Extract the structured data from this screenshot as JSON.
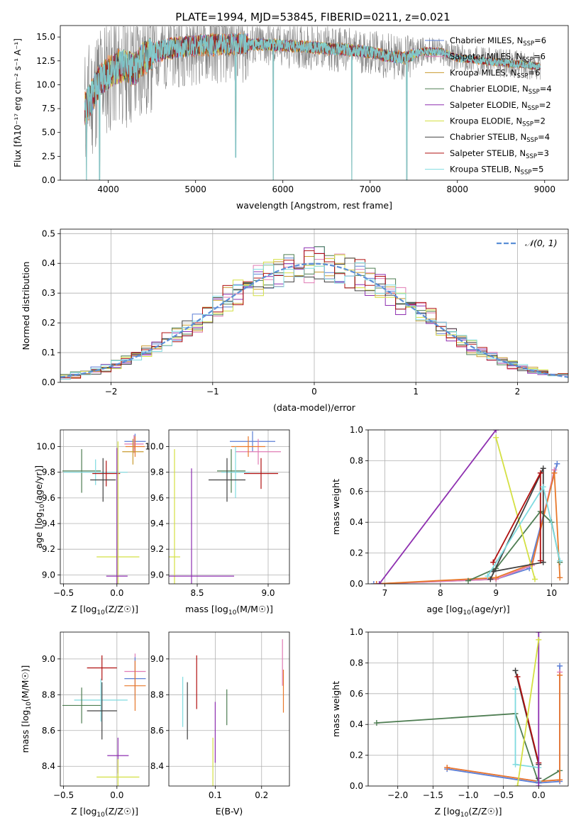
{
  "figure": {
    "title": "PLATE=1994, MJD=53845, FIBERID=0211, z=0.021"
  },
  "colors": {
    "Chabrier MILES": "#5b7fd6",
    "Salpeter MILES": "#e07bb5",
    "Kroupa MILES": "#c99a2e",
    "Chabrier ELODIE": "#4e7d52",
    "Salpeter ELODIE": "#8e2fb0",
    "Kroupa ELODIE": "#d4e043",
    "Chabrier STELIB": "#404040",
    "Salpeter STELIB": "#b01010",
    "Kroupa STELIB": "#7fdbe0",
    "orange": "#e8782a",
    "gray": "#808080",
    "normal": "#5b8fd6"
  },
  "chart_data": [
    {
      "id": "spectrum",
      "type": "line",
      "xlabel": "wavelength [Angstrom, rest frame]",
      "ylabel": "Flux [fλ10⁻¹⁷ erg cm⁻² s⁻¹ A⁻¹]",
      "xlim": [
        3450,
        9270
      ],
      "ylim": [
        0,
        16.2
      ],
      "xticks": [
        4000,
        5000,
        6000,
        7000,
        8000,
        9000
      ],
      "yticks": [
        0.0,
        2.5,
        5.0,
        7.5,
        10.0,
        12.5,
        15.0
      ],
      "legend_position": "top-right",
      "continuum": {
        "x": [
          3730,
          3800,
          3900,
          4000,
          4100,
          4200,
          4300,
          4400,
          4500,
          4700,
          4900,
          5100,
          5300,
          5500,
          5800,
          6000,
          6200,
          6500,
          6800,
          7000,
          7200,
          7400,
          7600,
          7800,
          8000,
          8200,
          8400,
          8600,
          8800,
          8950
        ],
        "y": [
          7.5,
          8.5,
          10.5,
          11.2,
          11.8,
          12.0,
          11.5,
          12.8,
          13.3,
          13.8,
          14.0,
          14.2,
          14.2,
          14.3,
          14.2,
          14.1,
          14.0,
          13.8,
          13.6,
          13.4,
          13.0,
          12.8,
          13.5,
          13.5,
          12.8,
          12.6,
          12.4,
          12.2,
          12.1,
          11.9
        ]
      },
      "series": [
        {
          "name": "Chabrier MILES, N_SSP=6",
          "label_prefix": "Chabrier MILES, N",
          "label_sub": "SSP",
          "label_suffix": "=6"
        },
        {
          "name": "Salpeter MILES, N_SSP=6",
          "label_prefix": "Salpeter MILES, N",
          "label_sub": "SSP",
          "label_suffix": "=6"
        },
        {
          "name": "Kroupa MILES, N_SSP=6",
          "label_prefix": "Kroupa MILES, N",
          "label_sub": "SSP",
          "label_suffix": "=6"
        },
        {
          "name": "Chabrier ELODIE, N_SSP=4",
          "label_prefix": "Chabrier ELODIE, N",
          "label_sub": "SSP",
          "label_suffix": "=4"
        },
        {
          "name": "Salpeter ELODIE, N_SSP=2",
          "label_prefix": "Salpeter ELODIE, N",
          "label_sub": "SSP",
          "label_suffix": "=2"
        },
        {
          "name": "Kroupa ELODIE, N_SSP=2",
          "label_prefix": "Kroupa ELODIE, N",
          "label_sub": "SSP",
          "label_suffix": "=2"
        },
        {
          "name": "Chabrier STELIB, N_SSP=4",
          "label_prefix": "Chabrier STELIB, N",
          "label_sub": "SSP",
          "label_suffix": "=4"
        },
        {
          "name": "Salpeter STELIB, N_SSP=3",
          "label_prefix": "Salpeter STELIB, N",
          "label_sub": "SSP",
          "label_suffix": "=3"
        },
        {
          "name": "Kroupa STELIB, N_SSP=5",
          "label_prefix": "Kroupa STELIB, N",
          "label_sub": "SSP",
          "label_suffix": "=5"
        }
      ],
      "dropouts": [
        {
          "x": 3750,
          "y": 0.0
        },
        {
          "x": 3900,
          "y": 0.0
        },
        {
          "x": 5460,
          "y": 2.4
        },
        {
          "x": 5890,
          "y": 0.0
        },
        {
          "x": 6790,
          "y": 0.0
        },
        {
          "x": 7420,
          "y": 0.0
        }
      ]
    },
    {
      "id": "residuals",
      "type": "histogram",
      "xlabel": "(data-model)/error",
      "ylabel": "Normed distribution",
      "xlim": [
        -2.5,
        2.5
      ],
      "ylim": [
        0,
        0.515
      ],
      "xticks": [
        -2,
        -1,
        0,
        1,
        2
      ],
      "yticks": [
        0.0,
        0.1,
        0.2,
        0.3,
        0.4,
        0.5
      ],
      "grid": true,
      "legend_position": "top-right",
      "normal_label": "𝒩(0, 1)",
      "bin_width": 0.1
    },
    {
      "id": "age-vs-Z",
      "type": "errorbar",
      "xlabel_main": "Z [log",
      "xlabel_sub": "10",
      "xlabel_rest": "(Z/Z☉)]",
      "ylabel_main": "age  [log",
      "ylabel_sub": "10",
      "ylabel_rest": "(age/yr)]",
      "xlim": [
        -0.53,
        0.3
      ],
      "ylim": [
        8.93,
        10.13
      ],
      "xticks": [
        -0.5,
        0.0
      ],
      "yticks": [
        9.0,
        9.2,
        9.4,
        9.6,
        9.8,
        10.0
      ],
      "grid": true,
      "points": [
        {
          "series": "Chabrier MILES",
          "x": 0.17,
          "y": 10.04,
          "xerr": 0.1,
          "yerr": 0.06
        },
        {
          "series": "Salpeter MILES",
          "x": 0.16,
          "y": 10.02,
          "xerr": 0.09,
          "yerr": 0.07
        },
        {
          "series": "orange",
          "x": 0.17,
          "y": 10.0,
          "xerr": 0.09,
          "yerr": 0.08
        },
        {
          "series": "Kroupa MILES",
          "x": 0.15,
          "y": 9.96,
          "xerr": 0.1,
          "yerr": 0.1
        },
        {
          "series": "Chabrier ELODIE",
          "x": -0.33,
          "y": 9.81,
          "xerr": 0.18,
          "yerr": 0.17
        },
        {
          "series": "Kroupa STELIB",
          "x": -0.2,
          "y": 9.8,
          "xerr": 0.3,
          "yerr": 0.1
        },
        {
          "series": "Salpeter STELIB",
          "x": -0.1,
          "y": 9.79,
          "xerr": 0.13,
          "yerr": 0.1
        },
        {
          "series": "Chabrier STELIB",
          "x": -0.13,
          "y": 9.74,
          "xerr": 0.12,
          "yerr": 0.17
        },
        {
          "series": "Kroupa ELODIE",
          "x": 0.01,
          "y": 9.14,
          "xerr": 0.2,
          "yerr": 0.9
        },
        {
          "series": "Salpeter ELODIE",
          "x": 0.0,
          "y": 8.99,
          "xerr": 0.1,
          "yerr": 1.0
        }
      ]
    },
    {
      "id": "age-vs-mass",
      "type": "errorbar",
      "xlabel_main": "mass [log",
      "xlabel_sub": "10",
      "xlabel_rest": "(M/M☉)]",
      "xlim": [
        8.3,
        9.15
      ],
      "ylim": [
        8.93,
        10.13
      ],
      "xticks": [
        8.5,
        9.0
      ],
      "yticks": [
        9.0,
        9.2,
        9.4,
        9.6,
        9.8,
        10.0
      ],
      "grid": true,
      "points": [
        {
          "series": "Chabrier MILES",
          "x": 8.89,
          "y": 10.04,
          "xerr": 0.16,
          "yerr": 0.08
        },
        {
          "series": "Salpeter MILES",
          "x": 8.93,
          "y": 9.96,
          "xerr": 0.16,
          "yerr": 0.1
        },
        {
          "series": "orange",
          "x": 8.86,
          "y": 10.0,
          "xerr": 0.12,
          "yerr": 0.08
        },
        {
          "series": "Chabrier ELODIE",
          "x": 8.74,
          "y": 9.81,
          "xerr": 0.1,
          "yerr": 0.17
        },
        {
          "series": "Kroupa STELIB",
          "x": 8.77,
          "y": 9.8,
          "xerr": 0.1,
          "yerr": 0.2
        },
        {
          "series": "Salpeter STELIB",
          "x": 8.95,
          "y": 9.79,
          "xerr": 0.12,
          "yerr": 0.12
        },
        {
          "series": "Chabrier STELIB",
          "x": 8.71,
          "y": 9.74,
          "xerr": 0.13,
          "yerr": 0.17
        },
        {
          "series": "Kroupa ELODIE",
          "x": 8.34,
          "y": 9.14,
          "xerr": 0.04,
          "yerr": 0.84
        },
        {
          "series": "Salpeter ELODIE",
          "x": 8.46,
          "y": 8.99,
          "xerr": 0.3,
          "yerr": 0.84
        }
      ]
    },
    {
      "id": "weight-vs-age",
      "type": "line",
      "xlabel_main": "age  [log",
      "xlabel_sub": "10",
      "xlabel_rest": "(age/yr)]",
      "ylabel": "mass weight",
      "xlim": [
        6.7,
        10.3
      ],
      "ylim": [
        0.0,
        1.0
      ],
      "xticks": [
        7,
        8,
        9,
        10
      ],
      "yticks": [
        0.0,
        0.2,
        0.4,
        0.6,
        0.8,
        1.0
      ],
      "grid": true,
      "series": [
        {
          "series": "Chabrier MILES",
          "x": [
            6.8,
            9.0,
            9.6,
            10.1
          ],
          "y": [
            0.0,
            0.03,
            0.1,
            0.78
          ]
        },
        {
          "series": "Salpeter MILES",
          "x": [
            6.85,
            9.0,
            9.65,
            10.05
          ],
          "y": [
            0.0,
            0.03,
            0.12,
            0.74
          ]
        },
        {
          "series": "orange",
          "x": [
            6.85,
            9.0,
            9.65,
            10.05,
            10.15
          ],
          "y": [
            0.0,
            0.04,
            0.13,
            0.72,
            0.04
          ]
        },
        {
          "series": "Chabrier ELODIE",
          "x": [
            8.5,
            9.0,
            9.8,
            10.0,
            10.15
          ],
          "y": [
            0.02,
            0.1,
            0.47,
            0.4,
            0.14
          ]
        },
        {
          "series": "Salpeter ELODIE",
          "x": [
            6.9,
            9.0
          ],
          "y": [
            0.0,
            1.0
          ]
        },
        {
          "series": "Kroupa ELODIE",
          "x": [
            9.0,
            9.7
          ],
          "y": [
            0.95,
            0.03
          ]
        },
        {
          "series": "Chabrier STELIB",
          "x": [
            8.9,
            9.85,
            9.85,
            8.95
          ],
          "y": [
            0.03,
            0.75,
            0.14,
            0.08
          ]
        },
        {
          "series": "Salpeter STELIB",
          "x": [
            8.95,
            9.8,
            9.8
          ],
          "y": [
            0.14,
            0.72,
            0.15
          ]
        },
        {
          "series": "Kroupa STELIB",
          "x": [
            8.85,
            9.85,
            10.15
          ],
          "y": [
            0.05,
            0.63,
            0.15
          ]
        }
      ]
    },
    {
      "id": "mass-vs-Z",
      "type": "errorbar",
      "xlabel_main": "Z [log",
      "xlabel_sub": "10",
      "xlabel_rest": "(Z/Z☉)]",
      "ylabel_main": "mass [log",
      "ylabel_sub": "10",
      "ylabel_rest": "(M/M☉)]",
      "xlim": [
        -0.53,
        0.3
      ],
      "ylim": [
        8.29,
        9.15
      ],
      "xticks": [
        -0.5,
        0.0
      ],
      "yticks": [
        8.4,
        8.6,
        8.8,
        9.0
      ],
      "grid": true,
      "points": [
        {
          "series": "Salpeter STELIB",
          "x": -0.14,
          "y": 8.95,
          "xerr": 0.14,
          "yerr": 0.07
        },
        {
          "series": "Salpeter MILES",
          "x": 0.17,
          "y": 8.93,
          "xerr": 0.1,
          "yerr": 0.1
        },
        {
          "series": "Chabrier MILES",
          "x": 0.17,
          "y": 8.89,
          "xerr": 0.1,
          "yerr": 0.12
        },
        {
          "series": "orange",
          "x": 0.17,
          "y": 8.85,
          "xerr": 0.1,
          "yerr": 0.14
        },
        {
          "series": "Kroupa STELIB",
          "x": -0.15,
          "y": 8.77,
          "xerr": 0.25,
          "yerr": 0.12
        },
        {
          "series": "Chabrier ELODIE",
          "x": -0.33,
          "y": 8.74,
          "xerr": 0.18,
          "yerr": 0.1
        },
        {
          "series": "Chabrier STELIB",
          "x": -0.14,
          "y": 8.71,
          "xerr": 0.14,
          "yerr": 0.16
        },
        {
          "series": "Salpeter ELODIE",
          "x": 0.01,
          "y": 8.46,
          "xerr": 0.1,
          "yerr": 0.1
        },
        {
          "series": "Kroupa ELODIE",
          "x": 0.01,
          "y": 8.34,
          "xerr": 0.2,
          "yerr": 0.1
        }
      ]
    },
    {
      "id": "mass-vs-EBV",
      "type": "errorbar",
      "xlabel": "E(B-V)",
      "xlim": [
        0.0,
        0.26
      ],
      "ylim": [
        8.29,
        9.15
      ],
      "xticks": [
        0.1,
        0.2
      ],
      "yticks": [
        8.4,
        8.6,
        8.8,
        9.0
      ],
      "grid": true,
      "points": [
        {
          "series": "Kroupa STELIB",
          "x": 0.03,
          "y": 8.76,
          "xerr": 0.0,
          "yerr": 0.14
        },
        {
          "series": "Chabrier STELIB",
          "x": 0.04,
          "y": 8.71,
          "xerr": 0.0,
          "yerr": 0.16
        },
        {
          "series": "Salpeter STELIB",
          "x": 0.06,
          "y": 8.87,
          "xerr": 0.0,
          "yerr": 0.15
        },
        {
          "series": "Salpeter ELODIE",
          "x": 0.1,
          "y": 8.59,
          "xerr": 0.0,
          "yerr": 0.17
        },
        {
          "series": "Kroupa ELODIE",
          "x": 0.095,
          "y": 8.42,
          "xerr": 0.0,
          "yerr": 0.14
        },
        {
          "series": "Chabrier ELODIE",
          "x": 0.125,
          "y": 8.73,
          "xerr": 0.0,
          "yerr": 0.1
        },
        {
          "series": "Salpeter MILES",
          "x": 0.245,
          "y": 8.98,
          "xerr": 0.0,
          "yerr": 0.13
        },
        {
          "series": "orange",
          "x": 0.247,
          "y": 8.82,
          "xerr": 0.0,
          "yerr": 0.12
        }
      ]
    },
    {
      "id": "weight-vs-Z",
      "type": "line",
      "xlabel_main": "Z [log",
      "xlabel_sub": "10",
      "xlabel_rest": "(Z/Z☉)]",
      "ylabel": "mass weight",
      "xlim": [
        -2.42,
        0.42
      ],
      "ylim": [
        0.0,
        1.0
      ],
      "xticks": [
        -2.0,
        -1.5,
        -1.0,
        -0.5,
        0.0
      ],
      "yticks": [
        0.0,
        0.2,
        0.4,
        0.6,
        0.8,
        1.0
      ],
      "grid": true,
      "series": [
        {
          "series": "Chabrier ELODIE",
          "x": [
            -2.3,
            -0.33,
            0.0,
            0.3
          ],
          "y": [
            0.41,
            0.47,
            0.02,
            0.1
          ]
        },
        {
          "series": "Chabrier MILES",
          "x": [
            -1.3,
            0.0,
            0.3,
            0.3
          ],
          "y": [
            0.11,
            0.02,
            0.03,
            0.78
          ]
        },
        {
          "series": "Salpeter MILES",
          "x": [
            -1.3,
            0.0,
            0.3,
            0.3
          ],
          "y": [
            0.12,
            0.03,
            0.04,
            0.74
          ]
        },
        {
          "series": "orange",
          "x": [
            -1.3,
            0.0,
            0.3,
            0.3
          ],
          "y": [
            0.12,
            0.03,
            0.04,
            0.72
          ]
        },
        {
          "series": "Chabrier STELIB",
          "x": [
            -0.33,
            0.0,
            0.0
          ],
          "y": [
            0.75,
            0.14,
            0.05
          ]
        },
        {
          "series": "Salpeter STELIB",
          "x": [
            -0.3,
            0.0,
            0.0
          ],
          "y": [
            0.71,
            0.15,
            0.03
          ]
        },
        {
          "series": "Kroupa STELIB",
          "x": [
            -0.33,
            -0.33,
            0.0,
            0.0
          ],
          "y": [
            0.63,
            0.14,
            0.12,
            0.03
          ]
        },
        {
          "series": "Salpeter ELODIE",
          "x": [
            0.0,
            0.0
          ],
          "y": [
            0.0,
            1.0
          ]
        },
        {
          "series": "Kroupa ELODIE",
          "x": [
            -0.3,
            0.0
          ],
          "y": [
            0.0,
            0.95
          ]
        }
      ]
    }
  ]
}
